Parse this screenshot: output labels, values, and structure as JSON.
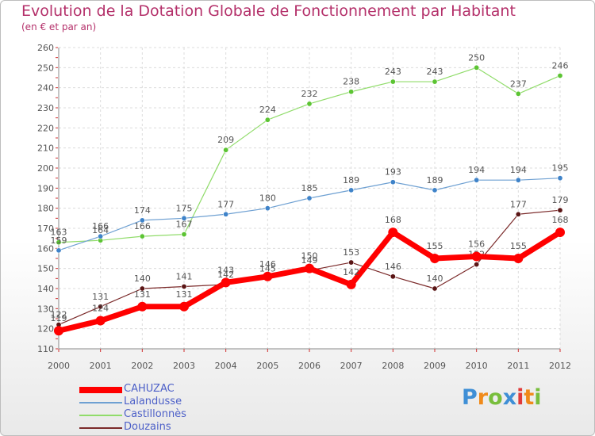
{
  "title": "Evolution de la Dotation Globale de Fonctionnement par Habitant",
  "subtitle": "(en € et par an)",
  "logo": {
    "letters": [
      "P",
      "r",
      "o",
      "x",
      "i",
      "t",
      "i"
    ],
    "colors": [
      "#3f8fd6",
      "#f08a1a",
      "#78be3c",
      "#3f8fd6",
      "#e03a3a",
      "#f08a1a",
      "#78be3c"
    ]
  },
  "chart_data": {
    "type": "line",
    "x": [
      "2000",
      "2001",
      "2002",
      "2003",
      "2004",
      "2005",
      "2006",
      "2007",
      "2008",
      "2009",
      "2010",
      "2011",
      "2012"
    ],
    "ylim": [
      110,
      260
    ],
    "yticks": [
      "110",
      "120",
      "130",
      "140",
      "150",
      "160",
      "170",
      "180",
      "190",
      "200",
      "210",
      "220",
      "230",
      "240",
      "250",
      "260"
    ],
    "grid": true,
    "legend_position": "bottom-left",
    "series": [
      {
        "name": "Douzains",
        "color": "#7b2a2a",
        "marker": "#5a1515",
        "values": [
          122,
          131,
          140,
          141,
          142,
          145,
          149,
          153,
          146,
          140,
          152,
          177,
          179
        ],
        "labels": [
          "122",
          "131",
          "140",
          "141",
          "142",
          "145",
          "149",
          "153",
          "146",
          "140",
          "152",
          "177",
          "179"
        ]
      },
      {
        "name": "Castillonnès",
        "color": "#90dc6a",
        "marker": "#5cc433",
        "values": [
          163,
          164,
          166,
          167,
          209,
          224,
          232,
          238,
          243,
          243,
          250,
          237,
          246
        ],
        "labels": [
          "163",
          "164",
          "166",
          "167",
          "209",
          "224",
          "232",
          "238",
          "243",
          "243",
          "250",
          "237",
          "246"
        ]
      },
      {
        "name": "Lalandusse",
        "color": "#6ea0d2",
        "marker": "#3f83c9",
        "values": [
          159,
          166,
          174,
          175,
          177,
          180,
          185,
          189,
          193,
          189,
          194,
          194,
          195
        ],
        "labels": [
          "159",
          "166",
          "174",
          "175",
          "177",
          "180",
          "185",
          "189",
          "193",
          "189",
          "194",
          "194",
          "195"
        ]
      },
      {
        "name": "CAHUZAC",
        "color": "#ff0000",
        "marker": "#ff0000",
        "values": [
          119,
          124,
          131,
          131,
          143,
          146,
          150,
          142,
          168,
          155,
          156,
          155,
          168
        ],
        "labels": [
          "119",
          "124",
          "131",
          "131",
          "143",
          "146",
          "150",
          "142",
          "168",
          "155",
          "156",
          "155",
          "168"
        ]
      }
    ],
    "legend": [
      {
        "name": "CAHUZAC",
        "color": "#ff0000",
        "thick": true
      },
      {
        "name": "Lalandusse",
        "color": "#6ea0d2",
        "thick": false
      },
      {
        "name": "Castillonnès",
        "color": "#90dc6a",
        "thick": false
      },
      {
        "name": "Douzains",
        "color": "#7b2a2a",
        "thick": false
      }
    ]
  }
}
